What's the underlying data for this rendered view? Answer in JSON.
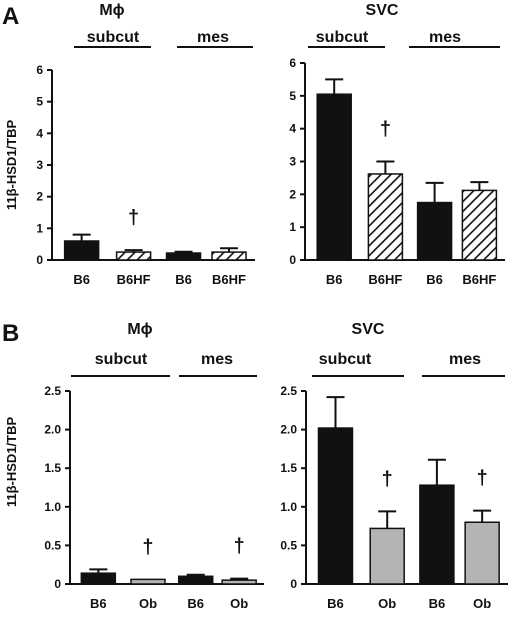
{
  "figure": {
    "panel_labels": [
      "A",
      "B"
    ],
    "y_axis_label": "11β-HSD1/TBP"
  },
  "colors": {
    "black": "#111111",
    "gray": "#b4b4b4",
    "hatched": "hatched-white"
  },
  "chart_data": [
    {
      "type": "bar",
      "panel": "A",
      "title": "Mϕ",
      "group_labels": [
        "subcut",
        "mes"
      ],
      "categories": [
        "B6",
        "B6HF",
        "B6",
        "B6HF"
      ],
      "values": [
        0.6,
        0.25,
        0.22,
        0.25
      ],
      "errors": [
        0.2,
        0.06,
        0.04,
        0.12
      ],
      "fills": [
        "black",
        "hatched",
        "black",
        "hatched"
      ],
      "significance": [
        "",
        "†",
        "",
        ""
      ],
      "ylim": [
        0,
        6
      ],
      "yticks": [
        "0",
        "1",
        "2",
        "3",
        "4",
        "5",
        "6"
      ],
      "ylabel": "11β-HSD1/TBP",
      "grid": false
    },
    {
      "type": "bar",
      "panel": "A",
      "title": "SVC",
      "group_labels": [
        "subcut",
        "mes"
      ],
      "categories": [
        "B6",
        "B6HF",
        "B6",
        "B6HF"
      ],
      "values": [
        5.05,
        2.62,
        1.75,
        2.12
      ],
      "errors": [
        0.45,
        0.38,
        0.6,
        0.25
      ],
      "fills": [
        "black",
        "hatched",
        "black",
        "hatched"
      ],
      "significance": [
        "",
        "†",
        "",
        ""
      ],
      "ylim": [
        0,
        6
      ],
      "yticks": [
        "0",
        "1",
        "2",
        "3",
        "4",
        "5",
        "6"
      ],
      "ylabel": "",
      "grid": false
    },
    {
      "type": "bar",
      "panel": "B",
      "title": "Mϕ",
      "group_labels": [
        "subcut",
        "mes"
      ],
      "categories": [
        "B6",
        "Ob",
        "B6",
        "Ob"
      ],
      "values": [
        0.14,
        0.06,
        0.1,
        0.05
      ],
      "errors": [
        0.05,
        0.0,
        0.02,
        0.02
      ],
      "fills": [
        "black",
        "gray",
        "black",
        "gray"
      ],
      "significance": [
        "",
        "†",
        "",
        "†"
      ],
      "ylim": [
        0,
        2.5
      ],
      "yticks": [
        "0",
        "0.5",
        "1.0",
        "1.5",
        "2.0",
        "2.5"
      ],
      "ylabel": "11β-HSD1/TBP",
      "grid": false
    },
    {
      "type": "bar",
      "panel": "B",
      "title": "SVC",
      "group_labels": [
        "subcut",
        "mes"
      ],
      "categories": [
        "B6",
        "Ob",
        "B6",
        "Ob"
      ],
      "values": [
        2.02,
        0.72,
        1.28,
        0.8
      ],
      "errors": [
        0.4,
        0.22,
        0.33,
        0.15
      ],
      "fills": [
        "black",
        "gray",
        "black",
        "gray"
      ],
      "significance": [
        "",
        "†",
        "",
        "†"
      ],
      "ylim": [
        0,
        2.5
      ],
      "yticks": [
        "0",
        "0.5",
        "1.0",
        "1.5",
        "2.0",
        "2.5"
      ],
      "ylabel": "",
      "grid": false
    }
  ]
}
